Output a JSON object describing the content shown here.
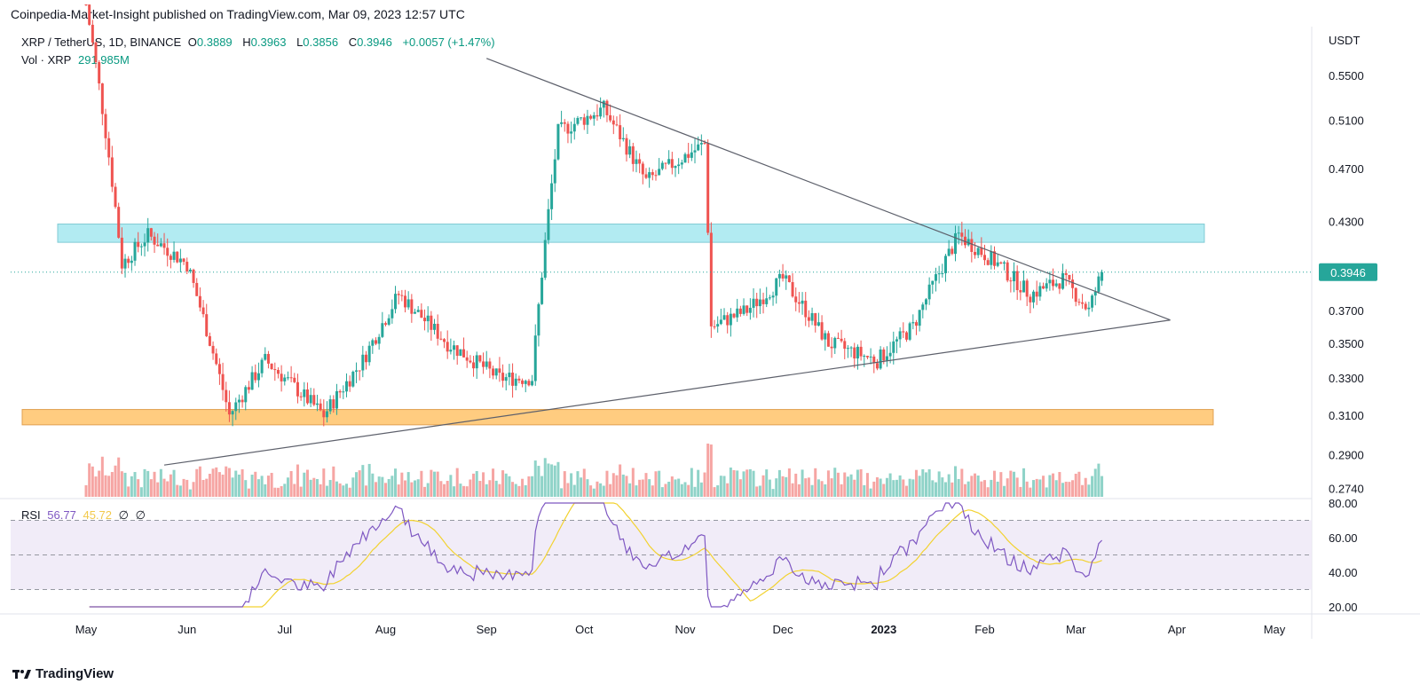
{
  "header": {
    "text": "Coinpedia-Market-Insight published on TradingView.com, Mar 09, 2023 12:57 UTC"
  },
  "legend": {
    "symbol": "XRP / TetherUS, 1D, BINANCE",
    "open_label": "O",
    "open": "0.3889",
    "high_label": "H",
    "high": "0.3963",
    "low_label": "L",
    "low": "0.3856",
    "close_label": "C",
    "close": "0.3946",
    "change": "+0.0057 (+1.47%)",
    "vol_label": "Vol · XRP",
    "vol": "291.985M"
  },
  "rsi_legend": {
    "label": "RSI",
    "rsi": "56.77",
    "ma": "45.72",
    "n1": "∅",
    "n2": "∅"
  },
  "branding": {
    "name": "TradingView"
  },
  "chart_data": {
    "type": "candlestick",
    "currency": "USDT",
    "price_ticks": [
      "0.5500",
      "0.5100",
      "0.4700",
      "0.4300",
      "0.3700",
      "0.3500",
      "0.3300",
      "0.3100",
      "0.2900",
      "0.2740"
    ],
    "current_price": "0.3946",
    "month_labels": [
      "May",
      "Jun",
      "Jul",
      "Aug",
      "Sep",
      "Oct",
      "Nov",
      "Dec",
      "2023",
      "Feb",
      "Mar",
      "Apr",
      "May"
    ],
    "rsi_ticks": [
      "80.00",
      "60.00",
      "40.00",
      "20.00"
    ],
    "colors": {
      "up": "#26a69a",
      "down": "#ef5350",
      "rsi": "#7e57c2",
      "rsi_ma": "#f2d230",
      "resistance_zone": "#b2ebf2",
      "support_zone": "#ffcc80",
      "trendline": "#5d606b"
    },
    "resistance_zone": [
      0.415,
      0.428
    ],
    "support_zone": [
      0.305,
      0.313
    ],
    "upper_trendline": {
      "from": [
        "2022-09-01",
        0.566
      ],
      "to": [
        "2023-03-30",
        0.364
      ]
    },
    "lower_trendline": {
      "from": [
        "2022-05-25",
        0.285
      ],
      "to": [
        "2023-03-30",
        0.364
      ]
    },
    "rsi_bands": [
      70,
      50,
      30
    ],
    "key_points": [
      {
        "date": "2022-05-01",
        "close": 0.62
      },
      {
        "date": "2022-05-12",
        "close": 0.4
      },
      {
        "date": "2022-05-20",
        "close": 0.42
      },
      {
        "date": "2022-06-01",
        "close": 0.4
      },
      {
        "date": "2022-06-14",
        "close": 0.31
      },
      {
        "date": "2022-06-25",
        "close": 0.34
      },
      {
        "date": "2022-07-13",
        "close": 0.31
      },
      {
        "date": "2022-07-25",
        "close": 0.34
      },
      {
        "date": "2022-08-05",
        "close": 0.38
      },
      {
        "date": "2022-08-20",
        "close": 0.35
      },
      {
        "date": "2022-09-05",
        "close": 0.33
      },
      {
        "date": "2022-09-15",
        "close": 0.33
      },
      {
        "date": "2022-09-23",
        "close": 0.5
      },
      {
        "date": "2022-10-07",
        "close": 0.52
      },
      {
        "date": "2022-10-20",
        "close": 0.46
      },
      {
        "date": "2022-11-07",
        "close": 0.49
      },
      {
        "date": "2022-11-09",
        "close": 0.36
      },
      {
        "date": "2022-11-20",
        "close": 0.37
      },
      {
        "date": "2022-12-01",
        "close": 0.39
      },
      {
        "date": "2022-12-15",
        "close": 0.35
      },
      {
        "date": "2022-12-30",
        "close": 0.34
      },
      {
        "date": "2023-01-10",
        "close": 0.36
      },
      {
        "date": "2023-01-24",
        "close": 0.42
      },
      {
        "date": "2023-02-05",
        "close": 0.4
      },
      {
        "date": "2023-02-15",
        "close": 0.38
      },
      {
        "date": "2023-02-25",
        "close": 0.39
      },
      {
        "date": "2023-03-05",
        "close": 0.37
      },
      {
        "date": "2023-03-09",
        "close": 0.3946
      }
    ]
  }
}
